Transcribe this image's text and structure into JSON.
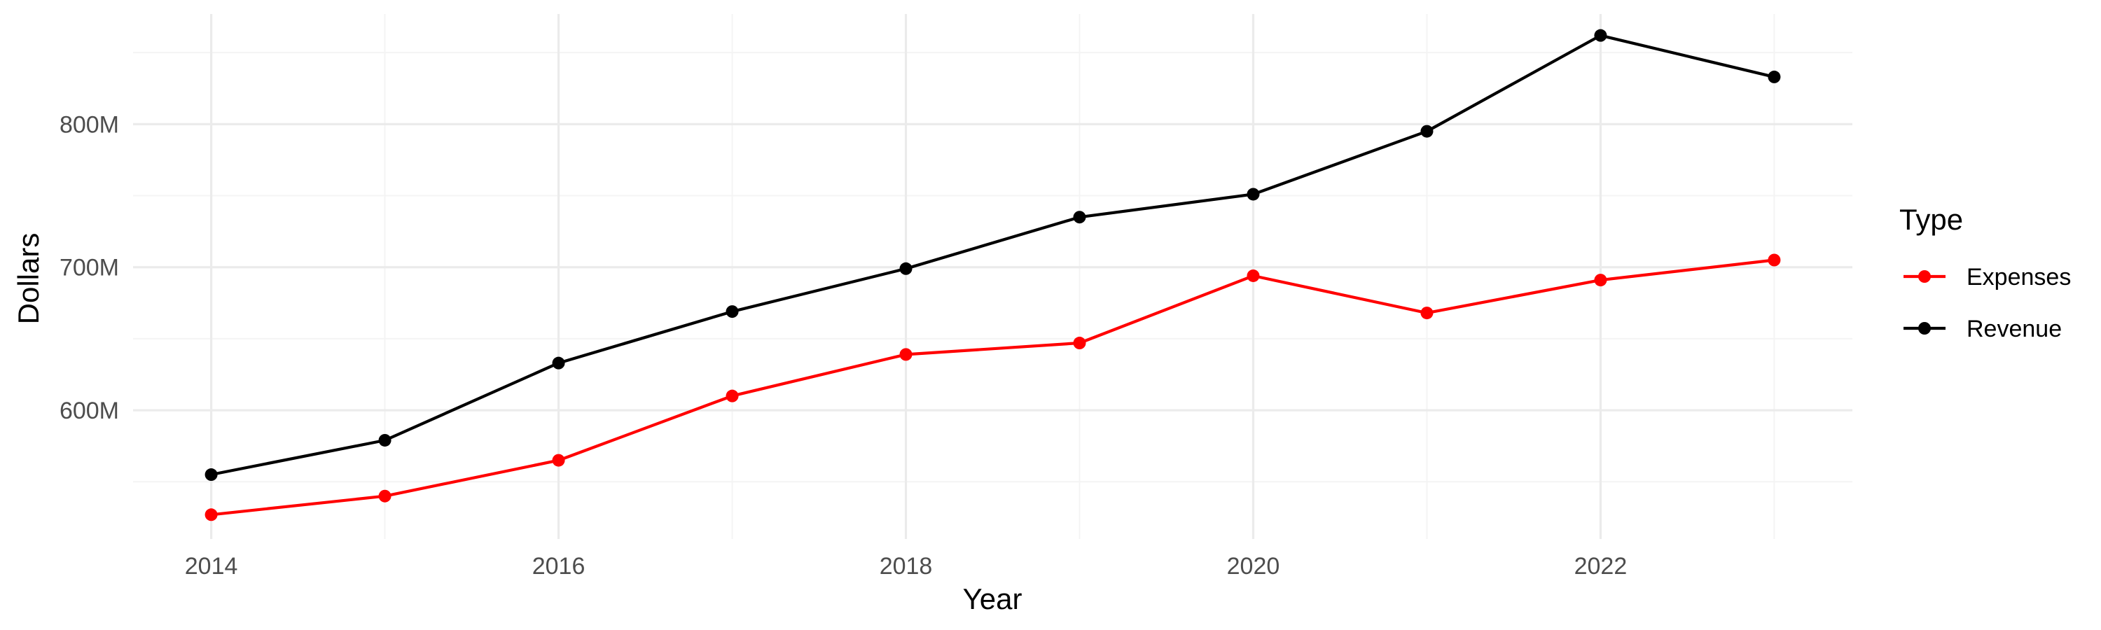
{
  "chart_data": {
    "type": "line",
    "xlabel": "Year",
    "ylabel": "Dollars",
    "x": [
      2014,
      2015,
      2016,
      2017,
      2018,
      2019,
      2020,
      2021,
      2022,
      2023
    ],
    "x_ticks": [
      2014,
      2016,
      2018,
      2020,
      2022
    ],
    "x_tick_labels": [
      "2014",
      "2016",
      "2018",
      "2020",
      "2022"
    ],
    "xlim": [
      2013.55,
      2023.45
    ],
    "y_ticks": [
      600000000,
      700000000,
      800000000
    ],
    "y_tick_labels": [
      "600M",
      "700M",
      "800M"
    ],
    "ylim": [
      510000000,
      877000000
    ],
    "grid": true,
    "legend": {
      "title": "Type",
      "position": "right"
    },
    "series": [
      {
        "name": "Expenses",
        "color": "#ff0000",
        "values": [
          527000000,
          540000000,
          565000000,
          610000000,
          639000000,
          647000000,
          694000000,
          668000000,
          691000000,
          705000000
        ]
      },
      {
        "name": "Revenue",
        "color": "#000000",
        "values": [
          555000000,
          579000000,
          633000000,
          669000000,
          699000000,
          735000000,
          751000000,
          795000000,
          862000000,
          833000000
        ]
      }
    ]
  }
}
